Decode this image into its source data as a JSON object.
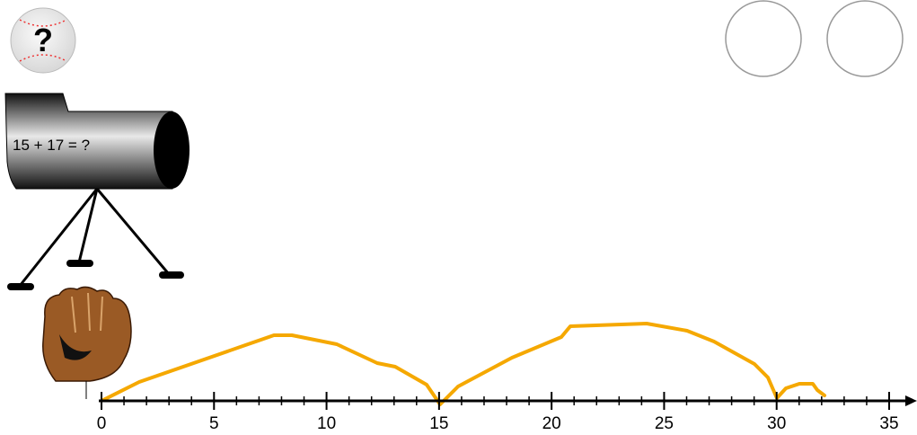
{
  "question_icon": "?",
  "problem": "15 + 17 = ?",
  "number_line": {
    "labels": [
      0,
      5,
      10,
      15,
      20,
      25,
      30,
      35
    ]
  }
}
